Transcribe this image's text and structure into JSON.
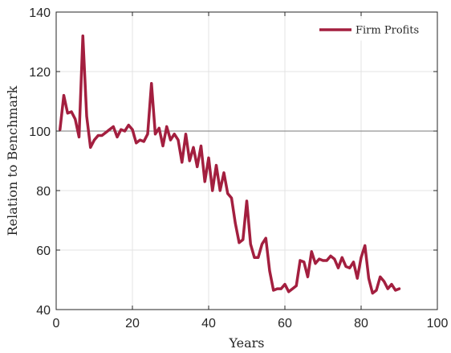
{
  "chart_data": {
    "type": "line",
    "title": "",
    "xlabel": "Years",
    "ylabel": "Relation to Benchmark",
    "xlim": [
      0,
      100
    ],
    "ylim": [
      40,
      140
    ],
    "xticks": [
      0,
      20,
      40,
      60,
      80,
      100
    ],
    "yticks": [
      40,
      60,
      80,
      100,
      120,
      140
    ],
    "grid": true,
    "legend_position": "top-right",
    "reference_line": 100,
    "series": [
      {
        "name": "Firm Profits",
        "color": "#a31f3f",
        "x": [
          1,
          2,
          3,
          4,
          5,
          6,
          7,
          8,
          9,
          10,
          11,
          12,
          13,
          14,
          15,
          16,
          17,
          18,
          19,
          20,
          21,
          22,
          23,
          24,
          25,
          26,
          27,
          28,
          29,
          30,
          31,
          32,
          33,
          34,
          35,
          36,
          37,
          38,
          39,
          40,
          41,
          42,
          43,
          44,
          45,
          46,
          47,
          48,
          49,
          50,
          51,
          52,
          53,
          54,
          55,
          56,
          57,
          58,
          59,
          60,
          61,
          62,
          63,
          64,
          65,
          66,
          67,
          68,
          69,
          70,
          71,
          72,
          73,
          74,
          75,
          76,
          77,
          78,
          79,
          80,
          81,
          82,
          83,
          84,
          85,
          86,
          87,
          88,
          89,
          90
        ],
        "y": [
          100.5,
          112,
          106,
          106.5,
          104,
          98,
          132,
          105,
          94.5,
          97,
          98.5,
          98.5,
          99.5,
          100.5,
          101.5,
          98,
          100.5,
          100,
          102,
          100.5,
          96,
          97,
          96.5,
          99,
          116,
          99,
          101,
          95,
          101.5,
          97,
          99,
          97,
          89.5,
          99,
          90,
          94.5,
          88,
          95,
          83,
          91,
          80,
          88.5,
          80,
          86,
          79,
          77.5,
          69,
          62.5,
          63.5,
          76.5,
          62,
          57.5,
          57.5,
          62,
          64,
          53,
          46.5,
          47,
          47,
          48.5,
          46,
          47,
          48,
          56.5,
          56,
          51,
          59.5,
          55.5,
          57,
          56.5,
          56.5,
          58,
          57,
          54,
          57.5,
          54.5,
          54,
          56,
          50.5,
          57.5,
          61.5,
          50.5,
          45.5,
          46.5,
          51,
          49.5,
          47,
          48.5,
          46.5,
          47
        ]
      }
    ]
  }
}
